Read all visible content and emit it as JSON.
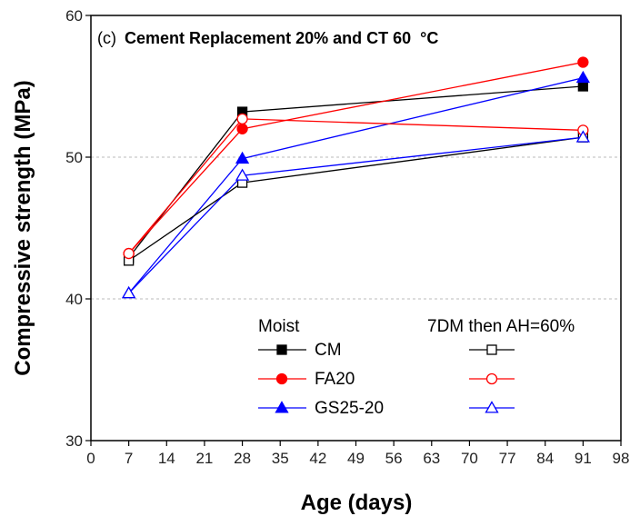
{
  "chart_data": {
    "type": "line",
    "title_prefix": "(c)",
    "title": "Cement Replacement 20% and CT 60",
    "title_unit": "°C",
    "xlabel": "Age (days)",
    "ylabel": "Compressive strength (MPa)",
    "xlim": [
      0,
      98
    ],
    "ylim": [
      30,
      60
    ],
    "xticks": [
      0,
      7,
      14,
      21,
      28,
      35,
      42,
      49,
      56,
      63,
      70,
      77,
      84,
      91,
      98
    ],
    "yticks": [
      30,
      40,
      50,
      60
    ],
    "grid_y": [
      40,
      50
    ],
    "legend": {
      "placement": "bottom-right",
      "group1_title": "Moist",
      "group2_title": "7DM then AH=60%"
    },
    "x": [
      7,
      28,
      91
    ],
    "series": [
      {
        "name": "CM",
        "group": "Moist",
        "color": "#000000",
        "marker": "square",
        "filled": true,
        "values": [
          42.9,
          53.2,
          55.0
        ]
      },
      {
        "name": "FA20",
        "group": "Moist",
        "color": "#ff0000",
        "marker": "circle",
        "filled": true,
        "values": [
          43.2,
          52.0,
          56.7
        ]
      },
      {
        "name": "GS25-20",
        "group": "Moist",
        "color": "#0000ff",
        "marker": "triangle",
        "filled": true,
        "values": [
          40.4,
          49.9,
          55.6
        ]
      },
      {
        "name": "",
        "group": "7DM then AH=60%",
        "color": "#000000",
        "marker": "square",
        "filled": false,
        "values": [
          42.7,
          48.2,
          51.4
        ]
      },
      {
        "name": "",
        "group": "7DM then AH=60%",
        "color": "#ff0000",
        "marker": "circle",
        "filled": false,
        "values": [
          43.2,
          52.7,
          51.9
        ]
      },
      {
        "name": "",
        "group": "7DM then AH=60%",
        "color": "#0000ff",
        "marker": "triangle",
        "filled": false,
        "values": [
          40.4,
          48.7,
          51.4
        ]
      }
    ]
  }
}
